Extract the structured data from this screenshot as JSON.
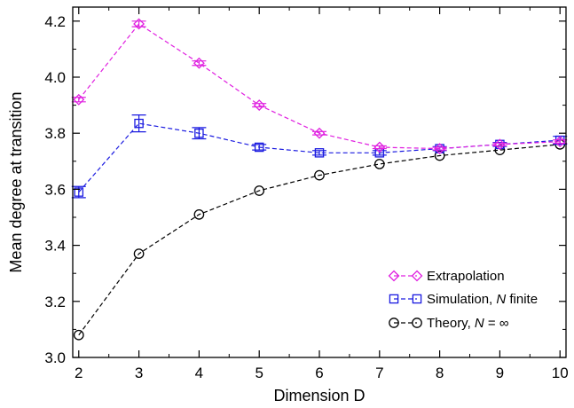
{
  "chart_data": {
    "type": "line",
    "title": "",
    "xlabel": "Dimension D",
    "ylabel": "Mean degree at transition",
    "xlim": [
      1.9,
      10.1
    ],
    "ylim": [
      3.0,
      4.25
    ],
    "x_ticks": [
      2,
      3,
      4,
      5,
      6,
      7,
      8,
      9,
      10
    ],
    "y_ticks": [
      3.0,
      3.2,
      3.4,
      3.6,
      3.8,
      4.0,
      4.2
    ],
    "y_tick_labels": [
      "3.0",
      "3.2",
      "3.4",
      "3.6",
      "3.8",
      "4.0",
      "4.2"
    ],
    "grid": false,
    "legend_position": "bottom-right",
    "series": [
      {
        "name": "Extrapolation",
        "name_parts": [
          {
            "text": "Extrapolation",
            "italic": false
          }
        ],
        "color": "#e020e0",
        "marker": "diamond",
        "line": "dashed",
        "x": [
          2,
          3,
          4,
          5,
          6,
          7,
          8,
          9,
          10
        ],
        "y": [
          3.92,
          4.19,
          4.05,
          3.9,
          3.8,
          3.75,
          3.745,
          3.76,
          3.77
        ],
        "err": [
          0.008,
          0.01,
          0.008,
          0.006,
          0.006,
          0.005,
          0.005,
          0.005,
          0.006
        ]
      },
      {
        "name": "Simulation, N finite",
        "name_parts": [
          {
            "text": "Simulation, ",
            "italic": false
          },
          {
            "text": "N",
            "italic": true
          },
          {
            "text": " finite",
            "italic": false
          }
        ],
        "color": "#1a1ae0",
        "marker": "square",
        "line": "dashed",
        "x": [
          2,
          3,
          4,
          5,
          6,
          7,
          8,
          9,
          10
        ],
        "y": [
          3.59,
          3.835,
          3.8,
          3.75,
          3.73,
          3.73,
          3.745,
          3.76,
          3.775
        ],
        "err": [
          0.02,
          0.03,
          0.02,
          0.01,
          0.008,
          0.008,
          0.007,
          0.007,
          0.014
        ]
      },
      {
        "name": "Theory, N = ∞",
        "name_parts": [
          {
            "text": "Theory, ",
            "italic": false
          },
          {
            "text": "N",
            "italic": true
          },
          {
            "text": " = ∞",
            "italic": false
          }
        ],
        "color": "#000000",
        "marker": "circle",
        "line": "dashed",
        "x": [
          2,
          3,
          4,
          5,
          6,
          7,
          8,
          9,
          10
        ],
        "y": [
          3.08,
          3.37,
          3.51,
          3.595,
          3.65,
          3.69,
          3.72,
          3.74,
          3.76
        ],
        "err": [
          0,
          0,
          0,
          0,
          0,
          0,
          0,
          0,
          0
        ]
      }
    ]
  }
}
